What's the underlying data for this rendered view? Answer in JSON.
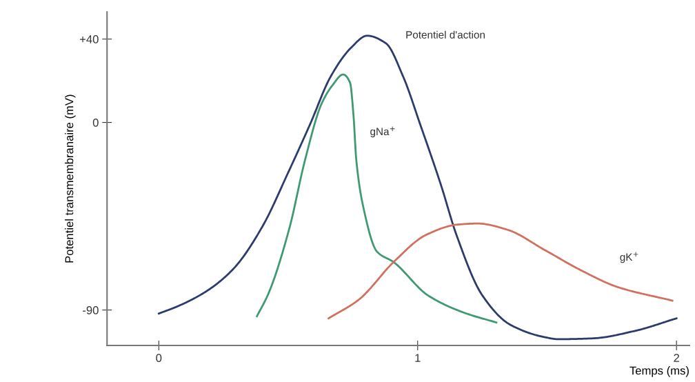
{
  "chart_data": {
    "type": "line",
    "xlabel": "Temps (ms)",
    "ylabel": "Potentiel transmembranaire (mV)",
    "xlim": [
      -0.2,
      2.05
    ],
    "ylim": [
      -107,
      53
    ],
    "xticks": [
      0,
      1,
      2
    ],
    "yticks": [
      {
        "value": 40,
        "label": "+40"
      },
      0,
      -90
    ],
    "grid": false,
    "legend": false,
    "marker": "none",
    "line_style": "solid",
    "series": [
      {
        "name": "Potentiel d'action",
        "color": "#2b3b6b",
        "x": [
          0,
          0.077,
          0.184,
          0.29,
          0.4,
          0.5,
          0.584,
          0.664,
          0.744,
          0.805,
          0.877,
          0.944,
          1.01,
          1.09,
          1.15,
          1.25,
          1.357,
          1.49,
          1.544,
          1.677,
          1.84,
          2.0
        ],
        "values": [
          -91.7,
          -88,
          -81,
          -70,
          -50,
          -24,
          -1,
          22,
          36,
          41.6,
          38,
          22,
          -1,
          -30,
          -54,
          -83,
          -97,
          -103,
          -104,
          -103.6,
          -100,
          -94
        ]
      },
      {
        "name": "gNa$^{+}$",
        "color": "#3f9a72",
        "x": [
          0.379,
          0.424,
          0.504,
          0.565,
          0.629,
          0.672,
          0.712,
          0.739,
          0.752,
          0.763,
          0.789,
          0.843,
          0.907,
          1.04,
          1.173,
          1.304
        ],
        "values": [
          -93,
          -82,
          -51,
          -18,
          9,
          18,
          23,
          19,
          3.6,
          -18,
          -40,
          -62,
          -67,
          -83,
          -91,
          -96
        ]
      },
      {
        "name": "gK$^{+}$",
        "color": "#d0705f",
        "x": [
          0.656,
          0.773,
          0.907,
          1.032,
          1.155,
          1.232,
          1.347,
          1.488,
          1.632,
          1.773,
          1.984
        ],
        "values": [
          -94,
          -85,
          -67,
          -54,
          -49,
          -48.5,
          -51.5,
          -61,
          -71,
          -79,
          -85.5
        ]
      }
    ]
  }
}
